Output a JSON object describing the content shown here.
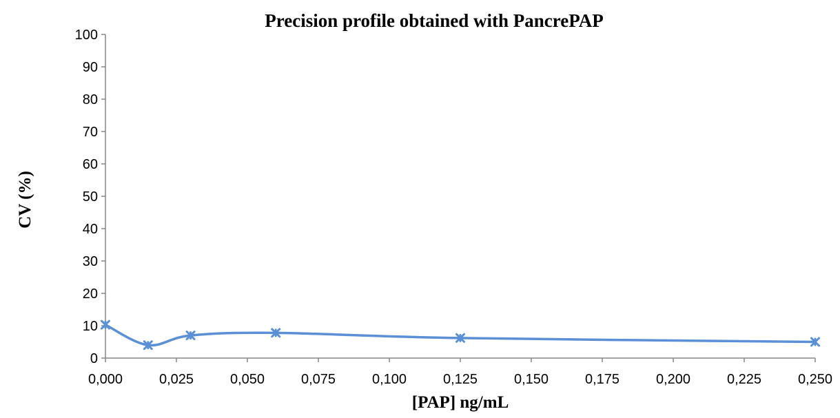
{
  "chart_data": {
    "type": "line",
    "title": "Precision profile obtained with PancrePAP",
    "xlabel": "[PAP] ng/mL",
    "ylabel": "CV (%)",
    "xlim": [
      0,
      0.25
    ],
    "ylim": [
      0,
      100
    ],
    "x_ticks": [
      "0,000",
      "0,025",
      "0,050",
      "0,075",
      "0,100",
      "0,125",
      "0,150",
      "0,175",
      "0,200",
      "0,225",
      "0,250"
    ],
    "y_ticks": [
      "0",
      "10",
      "20",
      "30",
      "40",
      "50",
      "60",
      "70",
      "80",
      "90",
      "100"
    ],
    "grid": false,
    "legend": "none",
    "smooth": true,
    "series": [
      {
        "color": "#5B8FD6",
        "marker": "x",
        "x": [
          0.0,
          0.015,
          0.03,
          0.06,
          0.125,
          0.25
        ],
        "y": [
          10.3,
          4.0,
          7.0,
          7.8,
          6.2,
          5.0
        ]
      }
    ]
  }
}
